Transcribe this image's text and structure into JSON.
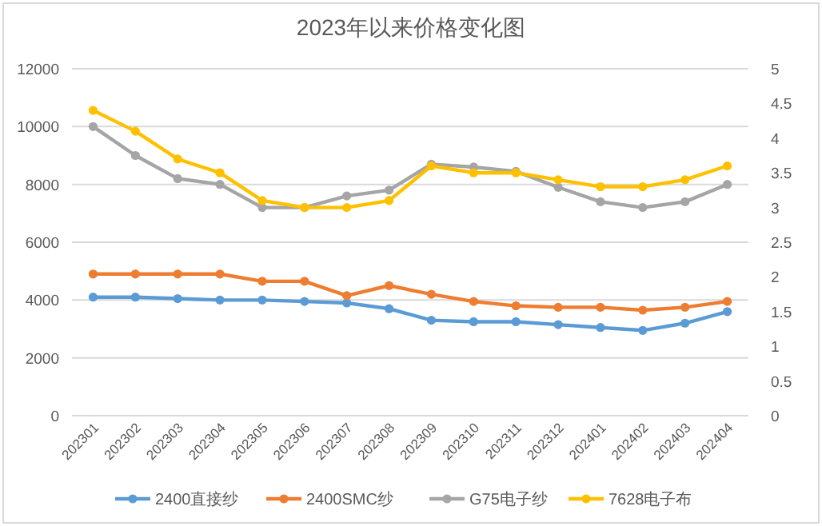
{
  "chart_data": {
    "type": "line",
    "title": "2023年以来价格变化图",
    "categories": [
      "202301",
      "202302",
      "202303",
      "202304",
      "202305",
      "202306",
      "202307",
      "202308",
      "202309",
      "202310",
      "202311",
      "202312",
      "202401",
      "202402",
      "202403",
      "202404"
    ],
    "series": [
      {
        "name": "2400直接纱",
        "color": "#5b9bd5",
        "values": [
          4100,
          4100,
          4050,
          4000,
          4000,
          3950,
          3900,
          3700,
          3300,
          3250,
          3250,
          3150,
          3050,
          2950,
          3200,
          3600
        ]
      },
      {
        "name": "2400SMC纱",
        "color": "#ed7d31",
        "values": [
          4900,
          4900,
          4900,
          4900,
          4650,
          4650,
          4150,
          4500,
          4200,
          3950,
          3800,
          3750,
          3750,
          3650,
          3750,
          3950
        ]
      },
      {
        "name": "G75电子纱",
        "color": "#a5a5a5",
        "values": [
          10000,
          9000,
          8200,
          8000,
          7200,
          7200,
          7600,
          7800,
          8700,
          8600,
          8450,
          7900,
          7400,
          7200,
          7400,
          8000
        ]
      },
      {
        "name": "7628电子布",
        "color": "#ffc000",
        "axis": "y2",
        "values": [
          4.4,
          4.1,
          3.7,
          3.5,
          3.1,
          3.0,
          3.0,
          3.1,
          3.6,
          3.5,
          3.5,
          3.4,
          3.3,
          3.3,
          3.4,
          3.6
        ]
      }
    ],
    "ylim": [
      0,
      12000
    ],
    "yticks": [
      0,
      2000,
      4000,
      6000,
      8000,
      10000,
      12000
    ],
    "y2lim": [
      0,
      5
    ],
    "y2ticks": [
      0,
      0.5,
      1,
      1.5,
      2,
      2.5,
      3,
      3.5,
      4,
      4.5,
      5
    ],
    "grid": "y",
    "legend": "bottom",
    "marker": "circle",
    "line_style": "solid"
  }
}
